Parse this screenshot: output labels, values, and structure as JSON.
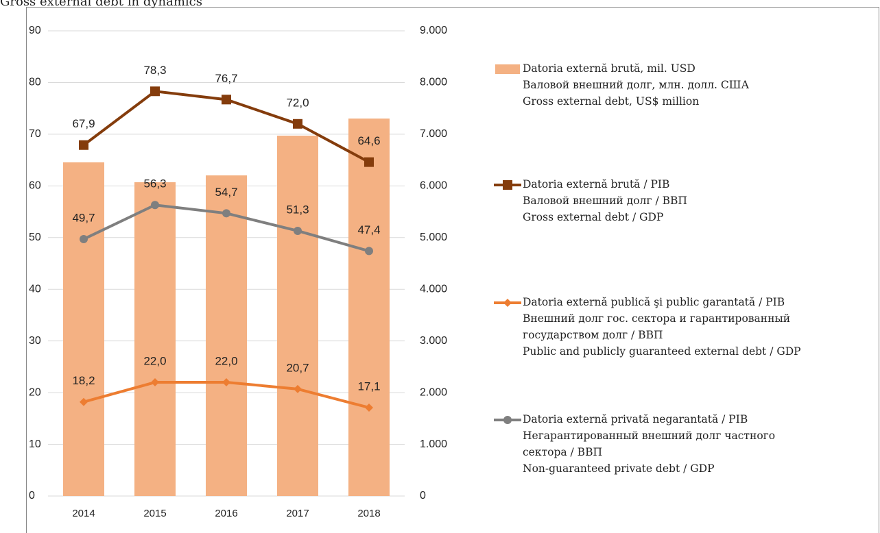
{
  "chart_data": {
    "type": "bar-line",
    "title": "Gross external debt in dynamics",
    "categories": [
      "2014",
      "2015",
      "2016",
      "2017",
      "2018"
    ],
    "ylim": [
      0,
      90
    ],
    "yticks": [
      0,
      10,
      20,
      30,
      40,
      50,
      60,
      70,
      80,
      90
    ],
    "y2lim": [
      0,
      9000
    ],
    "y2ticks": [
      0,
      {
        "value": 1000,
        "label": "1.000"
      },
      {
        "value": 2000,
        "label": "2.000"
      },
      {
        "value": 3000,
        "label": "3.000"
      },
      {
        "value": 4000,
        "label": "4.000"
      },
      {
        "value": 5000,
        "label": "5.000"
      },
      {
        "value": 6000,
        "label": "6.000"
      },
      {
        "value": 7000,
        "label": "7.000"
      },
      {
        "value": 8000,
        "label": "8.000"
      },
      {
        "value": 9000,
        "label": "9.000"
      }
    ],
    "grid": true,
    "legend": "right",
    "series": [
      {
        "name": [
          "Datoria externă brută, mil. USD",
          "Валовой внешний долг, млн. долл. США",
          "Gross external debt, US$ million"
        ],
        "type": "bar",
        "axis": "y2",
        "color": "#f4b183",
        "values": [
          6455,
          6071,
          6203,
          6972,
          7303
        ]
      },
      {
        "name": [
          "Datoria externă brută / PIB",
          "Валовой внешний долг / ВВП",
          "Gross external debt / GDP"
        ],
        "type": "line",
        "marker": "square",
        "color": "#843c0c",
        "values": [
          67.9,
          78.3,
          76.7,
          72.0,
          64.6
        ],
        "value_labels": [
          "67,9",
          "78,3",
          "76,7",
          "72,0",
          "64,6"
        ]
      },
      {
        "name": [
          "Datoria externă publică şi public garantată / PIB",
          "Внешний долг гос. сектора и гарантированный",
          "государством долг / ВВП",
          "Public and publicly guaranteed external debt / GDP"
        ],
        "type": "line",
        "marker": "diamond",
        "color": "#ed7d31",
        "values": [
          18.2,
          22.0,
          22.0,
          20.7,
          17.1
        ],
        "value_labels": [
          "18,2",
          "22,0",
          "22,0",
          "20,7",
          "17,1"
        ]
      },
      {
        "name": [
          "Datoria externă privată negarantată / PIB",
          "Негарантированный внешний долг частного",
          "сектора / ВВП",
          "Non-guaranteed private debt / GDP"
        ],
        "type": "line",
        "marker": "circle",
        "color": "#7f7f7f",
        "values": [
          49.7,
          56.3,
          54.7,
          51.3,
          47.4
        ],
        "value_labels": [
          "49,7",
          "56,3",
          "54,7",
          "51,3",
          "47,4"
        ]
      }
    ]
  }
}
